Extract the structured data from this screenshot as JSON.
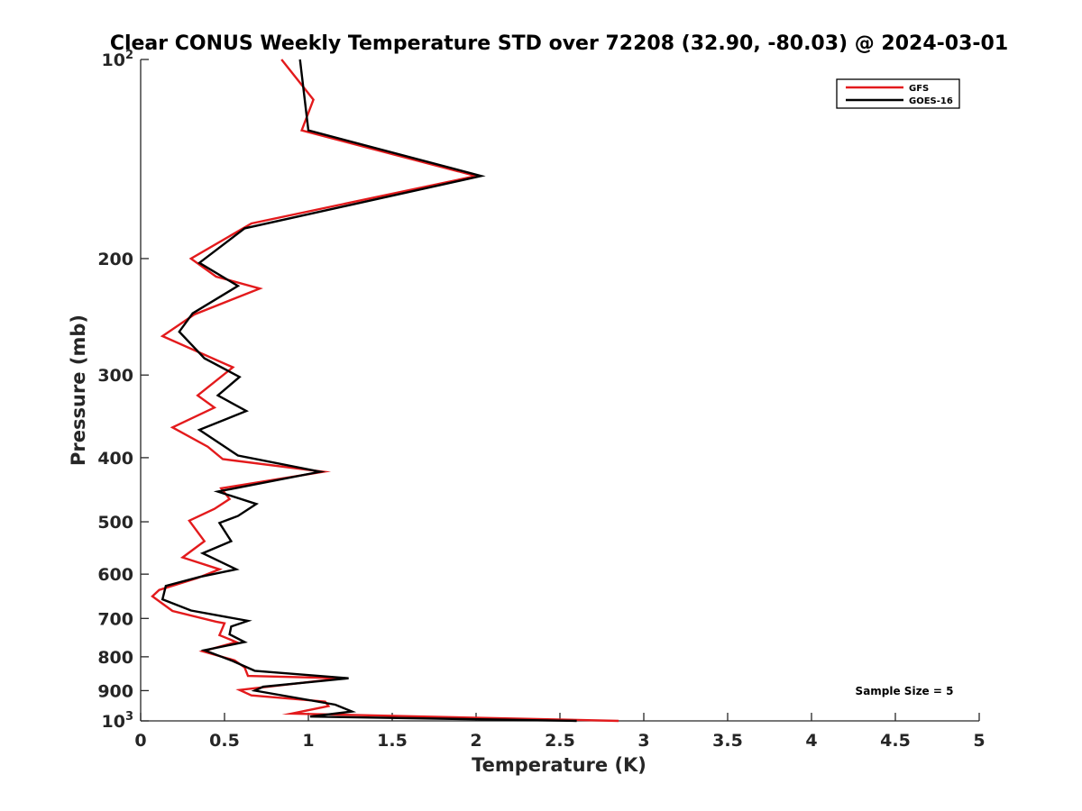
{
  "chart_data": {
    "type": "line",
    "title": "Clear CONUS Weekly Temperature STD over 72208 (32.90, -80.03) @ 2024-03-01",
    "xlabel": "Temperature (K)",
    "ylabel": "Pressure (mb)",
    "xlim": [
      0,
      5
    ],
    "ylim": [
      100,
      1000
    ],
    "y_scale": "log",
    "y_reversed": true,
    "grid": false,
    "legend_position": "top-right",
    "x_ticks": [
      0,
      0.5,
      1,
      1.5,
      2,
      2.5,
      3,
      3.5,
      4,
      4.5,
      5
    ],
    "x_tick_labels": [
      "0",
      "0.5",
      "1",
      "1.5",
      "2",
      "2.5",
      "3",
      "3.5",
      "4",
      "4.5",
      "5"
    ],
    "y_ticks": [
      100,
      200,
      300,
      400,
      500,
      600,
      700,
      800,
      900,
      1000
    ],
    "y_tick_labels": [
      {
        "base": "10",
        "exp": "2"
      },
      {
        "base": "200",
        "exp": ""
      },
      {
        "base": "300",
        "exp": ""
      },
      {
        "base": "400",
        "exp": ""
      },
      {
        "base": "500",
        "exp": ""
      },
      {
        "base": "600",
        "exp": ""
      },
      {
        "base": "700",
        "exp": ""
      },
      {
        "base": "800",
        "exp": ""
      },
      {
        "base": "900",
        "exp": ""
      },
      {
        "base": "10",
        "exp": "3"
      }
    ],
    "annotation": "Sample Size = 5",
    "series": [
      {
        "name": "GFS",
        "color": "#e31a1c",
        "points": [
          [
            0.84,
            100
          ],
          [
            1.03,
            115
          ],
          [
            0.96,
            128
          ],
          [
            2.0,
            150
          ],
          [
            0.66,
            177
          ],
          [
            0.3,
            200
          ],
          [
            0.45,
            213
          ],
          [
            0.71,
            222
          ],
          [
            0.32,
            243
          ],
          [
            0.13,
            262
          ],
          [
            0.55,
            292
          ],
          [
            0.34,
            322
          ],
          [
            0.44,
            336
          ],
          [
            0.19,
            360
          ],
          [
            0.4,
            385
          ],
          [
            0.49,
            402
          ],
          [
            1.09,
            420
          ],
          [
            0.48,
            445
          ],
          [
            0.53,
            462
          ],
          [
            0.44,
            478
          ],
          [
            0.29,
            498
          ],
          [
            0.38,
            535
          ],
          [
            0.25,
            566
          ],
          [
            0.47,
            590
          ],
          [
            0.34,
            608
          ],
          [
            0.11,
            634
          ],
          [
            0.07,
            648
          ],
          [
            0.19,
            682
          ],
          [
            0.45,
            708
          ],
          [
            0.5,
            712
          ],
          [
            0.47,
            742
          ],
          [
            0.57,
            760
          ],
          [
            0.37,
            785
          ],
          [
            0.56,
            810
          ],
          [
            0.62,
            830
          ],
          [
            0.64,
            855
          ],
          [
            1.2,
            862
          ],
          [
            0.59,
            898
          ],
          [
            0.66,
            915
          ],
          [
            1.1,
            935
          ],
          [
            1.12,
            950
          ],
          [
            0.9,
            975
          ],
          [
            2.85,
            1000
          ]
        ]
      },
      {
        "name": "GOES-16",
        "color": "#000000",
        "points": [
          [
            0.95,
            100
          ],
          [
            1.0,
            128
          ],
          [
            2.03,
            150
          ],
          [
            0.62,
            180
          ],
          [
            0.35,
            203
          ],
          [
            0.58,
            220
          ],
          [
            0.31,
            242
          ],
          [
            0.23,
            258
          ],
          [
            0.38,
            283
          ],
          [
            0.59,
            302
          ],
          [
            0.46,
            322
          ],
          [
            0.63,
            340
          ],
          [
            0.35,
            363
          ],
          [
            0.58,
            397
          ],
          [
            1.07,
            420
          ],
          [
            0.46,
            450
          ],
          [
            0.69,
            470
          ],
          [
            0.58,
            490
          ],
          [
            0.47,
            502
          ],
          [
            0.54,
            535
          ],
          [
            0.37,
            558
          ],
          [
            0.57,
            590
          ],
          [
            0.35,
            606
          ],
          [
            0.15,
            625
          ],
          [
            0.13,
            655
          ],
          [
            0.3,
            681
          ],
          [
            0.64,
            706
          ],
          [
            0.54,
            720
          ],
          [
            0.53,
            740
          ],
          [
            0.62,
            760
          ],
          [
            0.38,
            782
          ],
          [
            0.55,
            812
          ],
          [
            0.68,
            840
          ],
          [
            1.24,
            862
          ],
          [
            0.73,
            888
          ],
          [
            0.68,
            900
          ],
          [
            1.16,
            945
          ],
          [
            1.26,
            968
          ],
          [
            1.01,
            985
          ],
          [
            2.6,
            1000
          ]
        ]
      }
    ]
  }
}
